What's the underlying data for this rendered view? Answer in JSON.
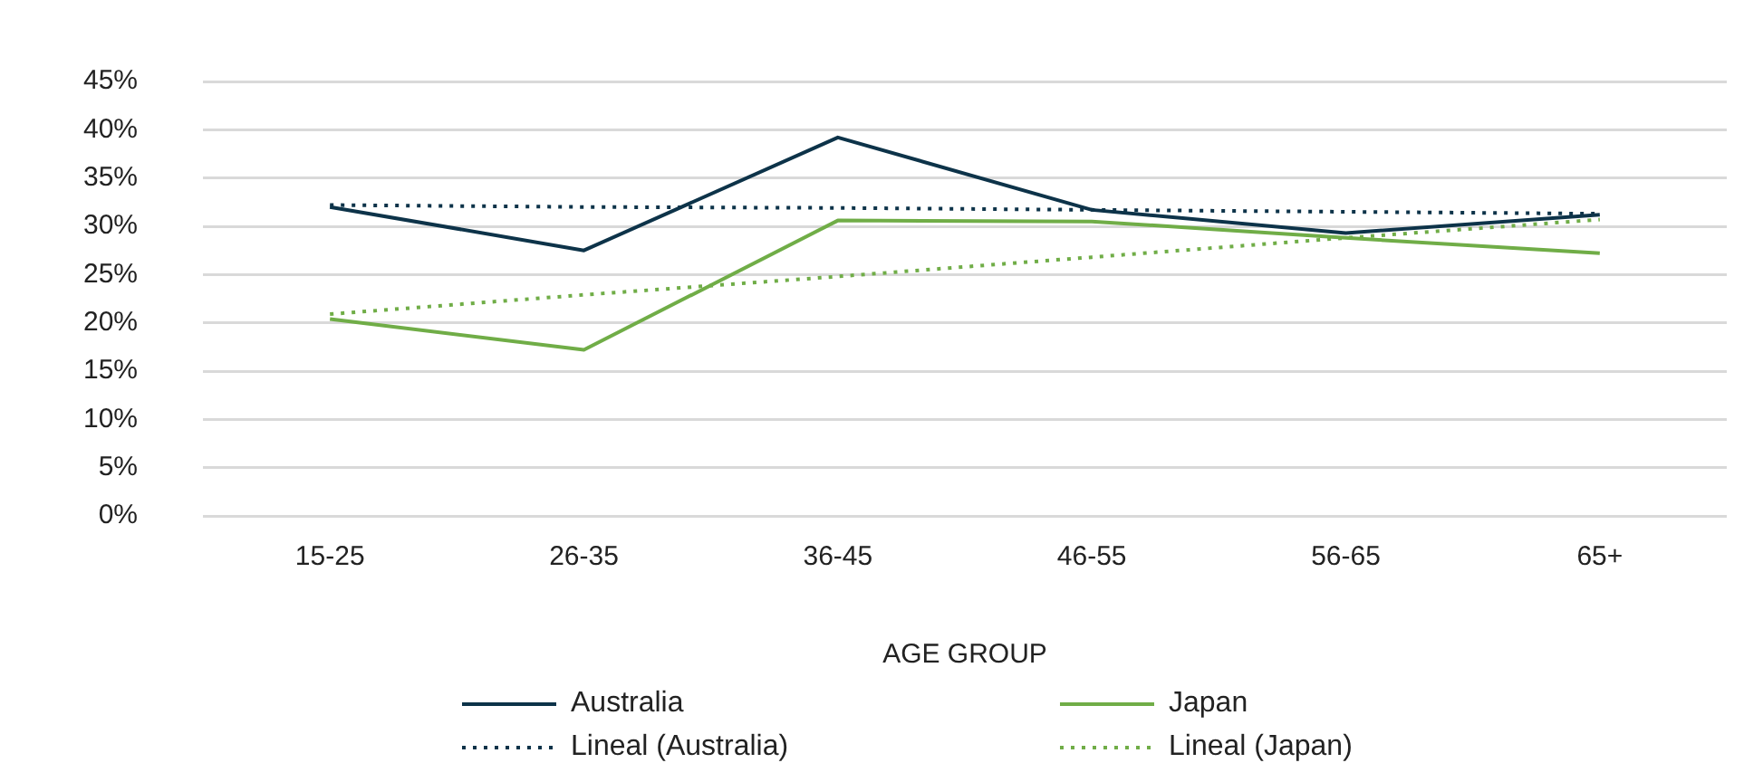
{
  "chart_data": {
    "type": "line",
    "xlabel": "AGE GROUP",
    "categories": [
      "15-25",
      "26-35",
      "36-45",
      "46-55",
      "56-65",
      "65+"
    ],
    "series": [
      {
        "name": "Australia",
        "color": "#0d3349",
        "line_style": "solid",
        "values": [
          32.0,
          27.5,
          39.2,
          31.7,
          29.3,
          31.2
        ]
      },
      {
        "name": "Japan",
        "color": "#70ad47",
        "line_style": "solid",
        "values": [
          20.4,
          17.2,
          30.6,
          30.5,
          28.8,
          27.2
        ]
      },
      {
        "name": "Lineal (Australia)",
        "color": "#0d3349",
        "line_style": "dotted",
        "values": [
          32.2,
          32.0,
          31.9,
          31.7,
          31.5,
          31.3
        ]
      },
      {
        "name": "Lineal (Japan)",
        "color": "#70ad47",
        "line_style": "dotted",
        "values": [
          20.9,
          22.9,
          24.8,
          26.8,
          28.8,
          30.7
        ]
      }
    ],
    "ylim": [
      0,
      45
    ],
    "yticks": [
      {
        "value": 0,
        "label": "0%"
      },
      {
        "value": 5,
        "label": "5%"
      },
      {
        "value": 10,
        "label": "10%"
      },
      {
        "value": 15,
        "label": "15%"
      },
      {
        "value": 20,
        "label": "20%"
      },
      {
        "value": 25,
        "label": "25%"
      },
      {
        "value": 30,
        "label": "30%"
      },
      {
        "value": 35,
        "label": "35%"
      },
      {
        "value": 40,
        "label": "40%"
      },
      {
        "value": 45,
        "label": "45%"
      }
    ],
    "grid": "y",
    "legend": "bottom",
    "marker": "none"
  }
}
